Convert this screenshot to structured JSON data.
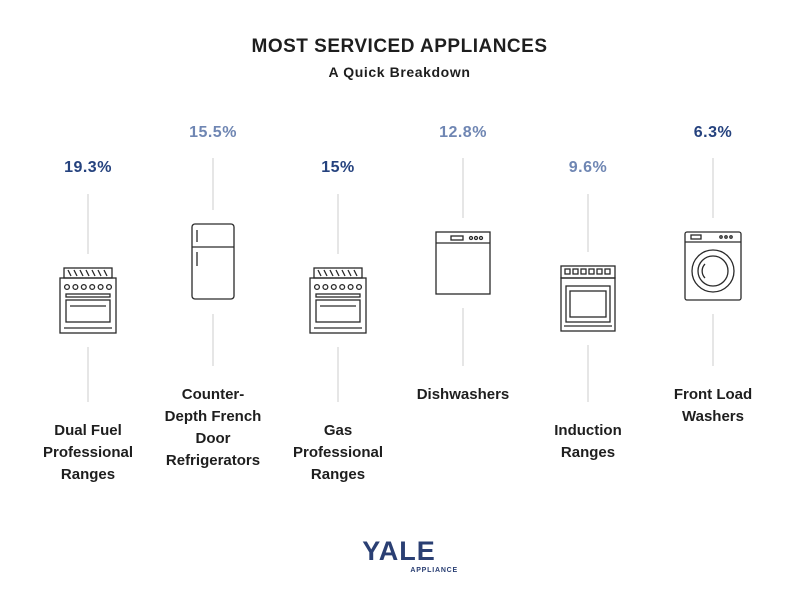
{
  "title": "MOST SERVICED APPLIANCES",
  "subtitle": "A Quick Breakdown",
  "logo": {
    "text": "YALE",
    "sub": "APPLIANCE"
  },
  "colors": {
    "dark_blue": "#25427e",
    "light_blue": "#6f86b3",
    "line": "#cccccc",
    "icon": "#2a2a2a"
  },
  "chart_data": {
    "type": "bar",
    "title": "MOST SERVICED APPLIANCES",
    "subtitle": "A Quick Breakdown",
    "unit": "%",
    "categories": [
      "Dual Fuel Professional Ranges",
      "Counter-Depth French Door Refrigerators",
      "Gas Professional Ranges",
      "Dishwashers",
      "Induction Ranges",
      "Front Load Washers"
    ],
    "values": [
      19.3,
      15.5,
      15,
      12.8,
      9.6,
      6.3
    ],
    "value_labels": [
      "19.3%",
      "15.5%",
      "15%",
      "12.8%",
      "9.6%",
      "6.3%"
    ],
    "label_lines": [
      [
        "Dual Fuel",
        "Professional",
        "Ranges"
      ],
      [
        "Counter-",
        "Depth French",
        "Door",
        "Refrigerators"
      ],
      [
        "Gas",
        "Professional",
        "Ranges"
      ],
      [
        "Dishwashers"
      ],
      [
        "Induction",
        "Ranges"
      ],
      [
        "Front Load",
        "Washers"
      ]
    ],
    "icons": [
      "range-icon",
      "refrigerator-icon",
      "range-icon",
      "dishwasher-icon",
      "induction-range-icon",
      "washer-icon"
    ],
    "tiers": [
      "low",
      "high",
      "low",
      "high",
      "low",
      "high"
    ],
    "value_colors": [
      "dark",
      "light",
      "dark",
      "light",
      "light",
      "dark"
    ]
  }
}
